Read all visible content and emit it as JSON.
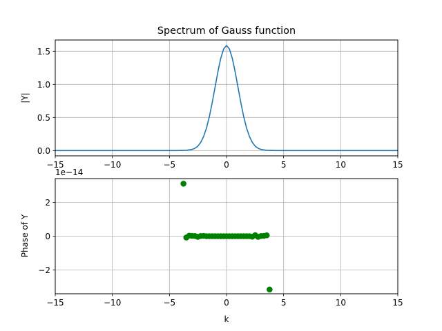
{
  "colors": {
    "line": "#1f77b4",
    "points": "#008000",
    "grid": "#b0b0b0",
    "frame": "#000000"
  },
  "chart_data": [
    {
      "type": "line",
      "title": "Spectrum of Gauss function",
      "xlabel": "",
      "ylabel": "|Y|",
      "xlim": [
        -15,
        15
      ],
      "ylim": [
        -0.08,
        1.67
      ],
      "xticks": [
        -15,
        -10,
        -5,
        0,
        5,
        10,
        15
      ],
      "yticks": [
        0.0,
        0.5,
        1.0,
        1.5
      ],
      "xtick_labels": [
        "−15",
        "−10",
        "−5",
        "0",
        "5",
        "10",
        "15"
      ],
      "ytick_labels": [
        "0.0",
        "0.5",
        "1.0",
        "1.5"
      ],
      "grid": true,
      "series": [
        {
          "x": [
            -15,
            -5,
            -4.5,
            -4,
            -3.5,
            -3,
            -2.75,
            -2.5,
            -2.25,
            -2,
            -1.75,
            -1.5,
            -1.25,
            -1,
            -0.75,
            -0.5,
            -0.25,
            0,
            0.25,
            0.5,
            0.75,
            1,
            1.25,
            1.5,
            1.75,
            2,
            2.25,
            2.5,
            2.75,
            3,
            3.5,
            4,
            4.5,
            5,
            15
          ],
          "y": [
            0,
            0,
            0,
            0.001,
            0.004,
            0.018,
            0.036,
            0.069,
            0.126,
            0.215,
            0.343,
            0.515,
            0.726,
            0.961,
            1.195,
            1.397,
            1.536,
            1.587,
            1.536,
            1.397,
            1.195,
            0.961,
            0.726,
            0.515,
            0.343,
            0.215,
            0.126,
            0.069,
            0.036,
            0.018,
            0.004,
            0.001,
            0,
            0,
            0
          ]
        }
      ]
    },
    {
      "type": "scatter",
      "title": "",
      "xlabel": "k",
      "ylabel": "Phase of Y",
      "offset_text": "1e−14",
      "xlim": [
        -15,
        15
      ],
      "ylim": [
        -3.4,
        3.4
      ],
      "xticks": [
        -15,
        -10,
        -5,
        0,
        5,
        10,
        15
      ],
      "yticks": [
        -2,
        0,
        2
      ],
      "xtick_labels": [
        "−15",
        "−10",
        "−5",
        "0",
        "5",
        "10",
        "15"
      ],
      "ytick_labels": [
        "−2",
        "0",
        "2"
      ],
      "grid": true,
      "series": [
        {
          "x": [
            -3.77,
            -3.52,
            -3.27,
            -3.02,
            -2.76,
            -2.51,
            -2.26,
            -2.01,
            -1.76,
            -1.51,
            -1.26,
            -1.01,
            -0.75,
            -0.5,
            -0.25,
            0,
            0.25,
            0.5,
            0.75,
            1.01,
            1.26,
            1.51,
            1.76,
            2.01,
            2.26,
            2.51,
            2.76,
            3.02,
            3.27,
            3.52,
            3.77
          ],
          "y": [
            3.1,
            -0.08,
            0.03,
            0.02,
            0.01,
            -0.04,
            0.01,
            0.02,
            0,
            0,
            0,
            0,
            0,
            0,
            0,
            0,
            0,
            0,
            0,
            0,
            0,
            0,
            0,
            0,
            -0.03,
            0.06,
            -0.04,
            0.01,
            0.02,
            0.05,
            -3.15
          ]
        }
      ]
    }
  ]
}
